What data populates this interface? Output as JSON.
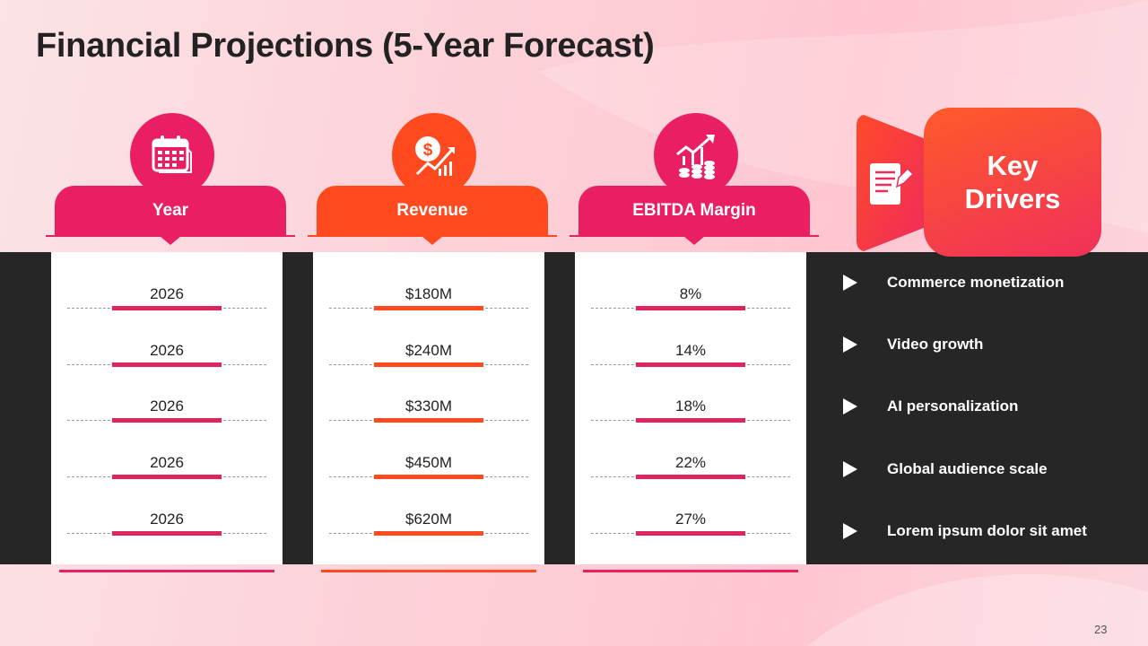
{
  "title": "Financial Projections (5-Year Forecast)",
  "colors": {
    "pink": "#ea1e63",
    "orange": "#ff4a1f",
    "dark": "#262626"
  },
  "columns": [
    {
      "label": "Year",
      "icon": "calendar-icon",
      "color": "#ea1e63",
      "values": [
        "2026",
        "2026",
        "2026",
        "2026",
        "2026"
      ]
    },
    {
      "label": "Revenue",
      "icon": "dollar-growth-icon",
      "color": "#ff4a1f",
      "values": [
        "$180M",
        "$240M",
        "$330M",
        "$450M",
        "$620M"
      ]
    },
    {
      "label": "EBITDA Margin",
      "icon": "growth-coins-icon",
      "color": "#ea1e63",
      "values": [
        "8%",
        "14%",
        "18%",
        "22%",
        "27%"
      ]
    }
  ],
  "drivers": {
    "heading_line1": "Key",
    "heading_line2": "Drivers",
    "icon": "document-pen-icon",
    "items": [
      "Commerce monetization",
      "Video growth",
      "AI personalization",
      "Global audience scale",
      "Lorem ipsum dolor sit amet"
    ]
  },
  "page_number": "23"
}
